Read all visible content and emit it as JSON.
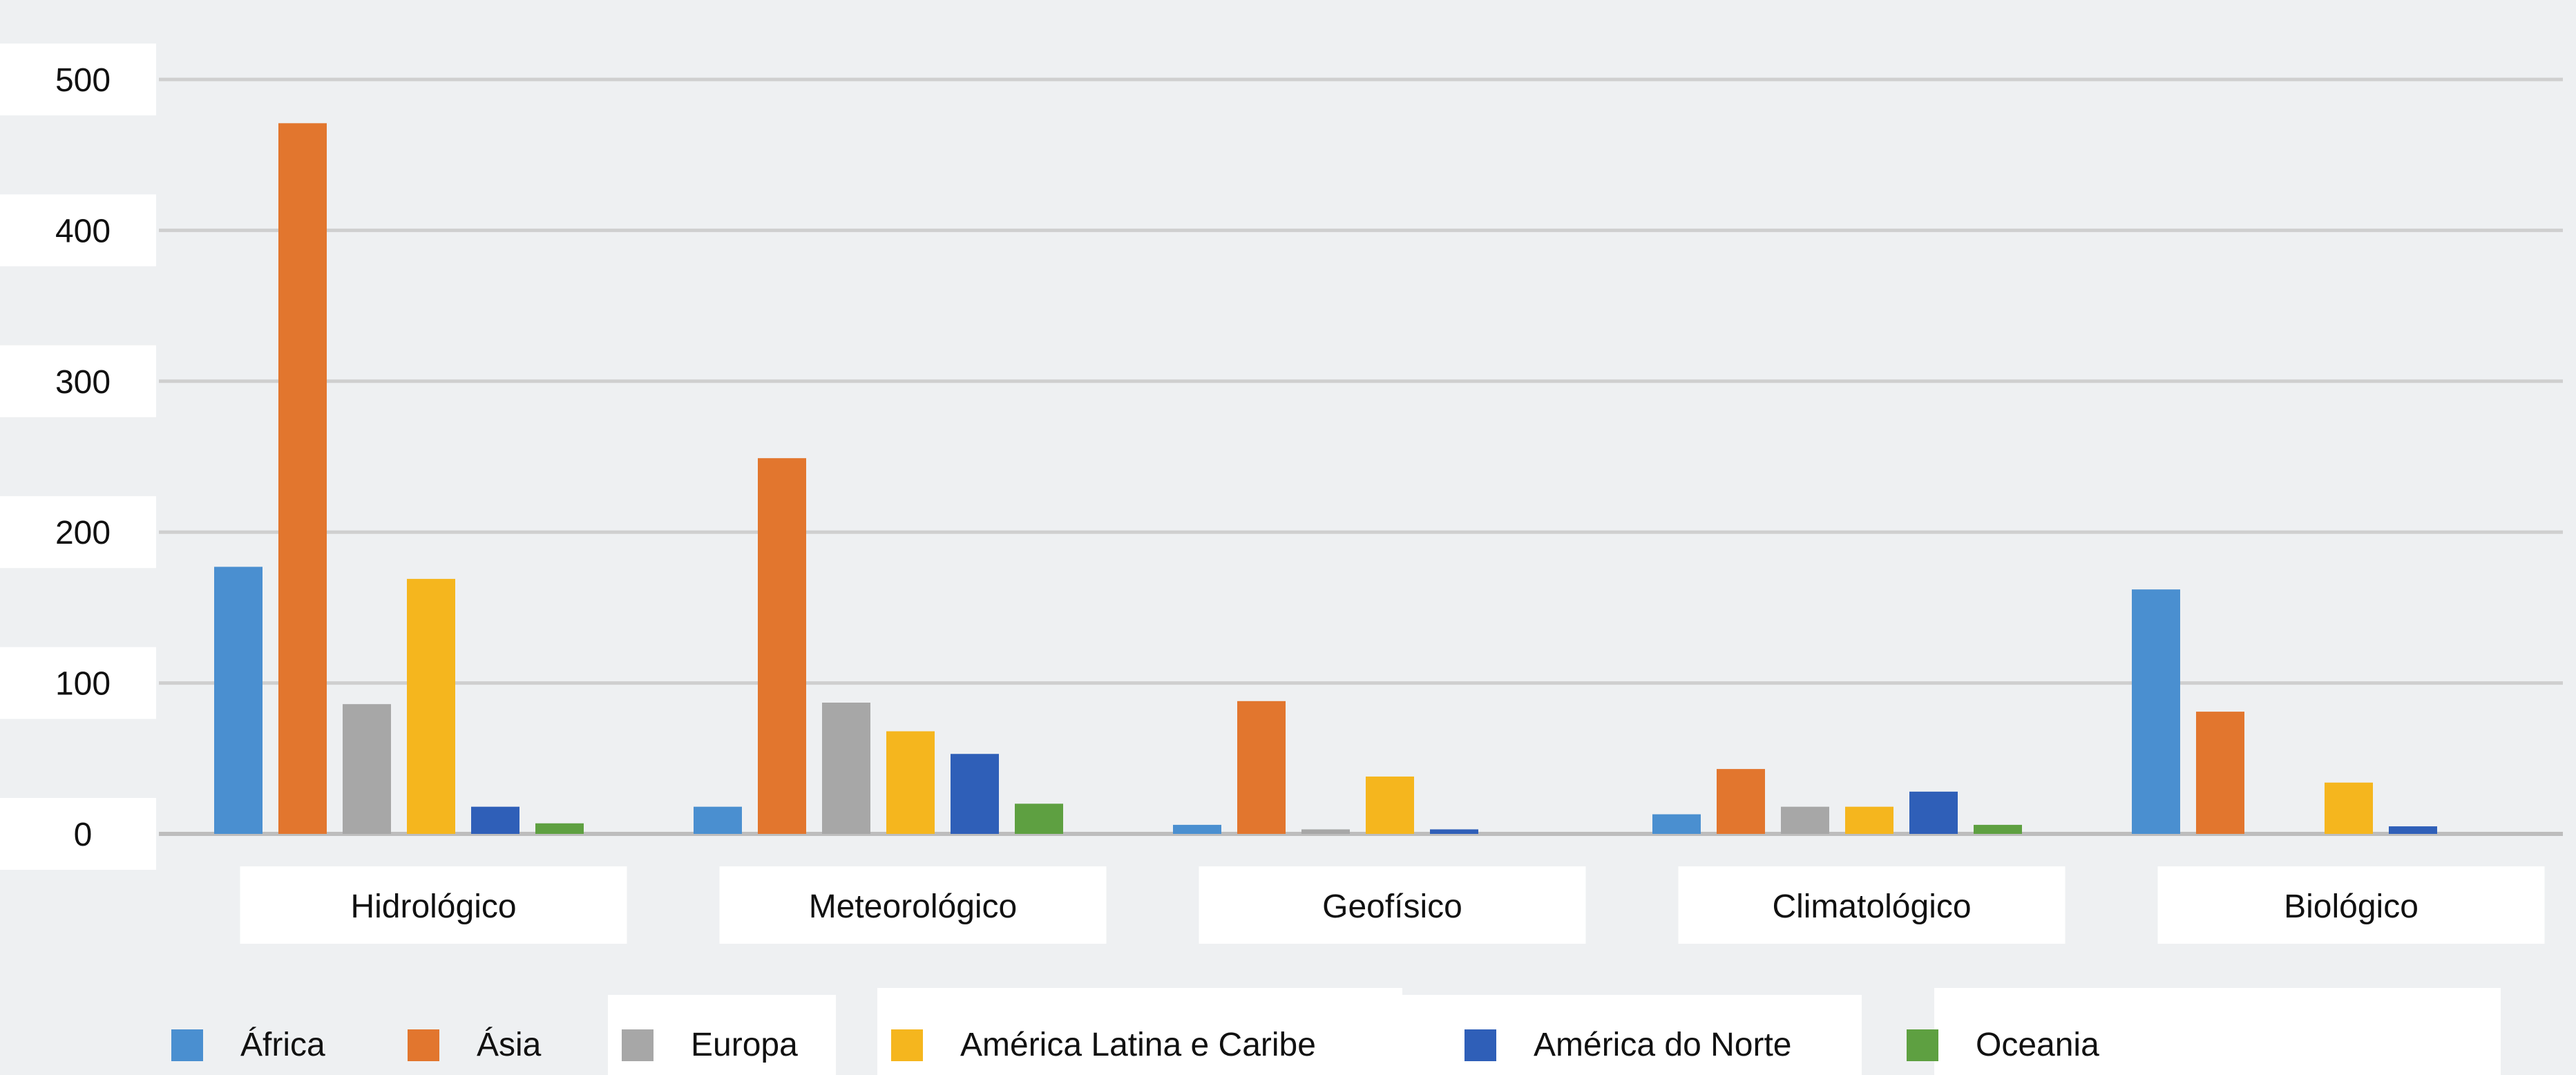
{
  "chart_data": {
    "type": "bar",
    "title": "",
    "xlabel": "",
    "ylabel": "",
    "ylim": [
      0,
      500
    ],
    "yticks": [
      0,
      100,
      200,
      300,
      400,
      500
    ],
    "grid": true,
    "legend_position": "bottom",
    "categories": [
      "Hidrológico",
      "Meteorológico",
      "Geofísico",
      "Climatológico",
      "Biológico"
    ],
    "series": [
      {
        "name": "África",
        "color": "#4a8fd0",
        "values": [
          177,
          18,
          6,
          13,
          162
        ]
      },
      {
        "name": "Ásia",
        "color": "#e2762e",
        "values": [
          471,
          249,
          88,
          43,
          81
        ]
      },
      {
        "name": "Europa",
        "color": "#a7a7a7",
        "values": [
          86,
          87,
          3,
          18,
          0
        ]
      },
      {
        "name": "América Latina e Caribe",
        "color": "#f5b61e",
        "values": [
          169,
          68,
          38,
          18,
          34
        ]
      },
      {
        "name": "América do Norte",
        "color": "#2f5fb8",
        "values": [
          18,
          53,
          3,
          28,
          5
        ]
      },
      {
        "name": "Oceania",
        "color": "#5ea041",
        "values": [
          7,
          20,
          0,
          6,
          0
        ]
      }
    ]
  }
}
